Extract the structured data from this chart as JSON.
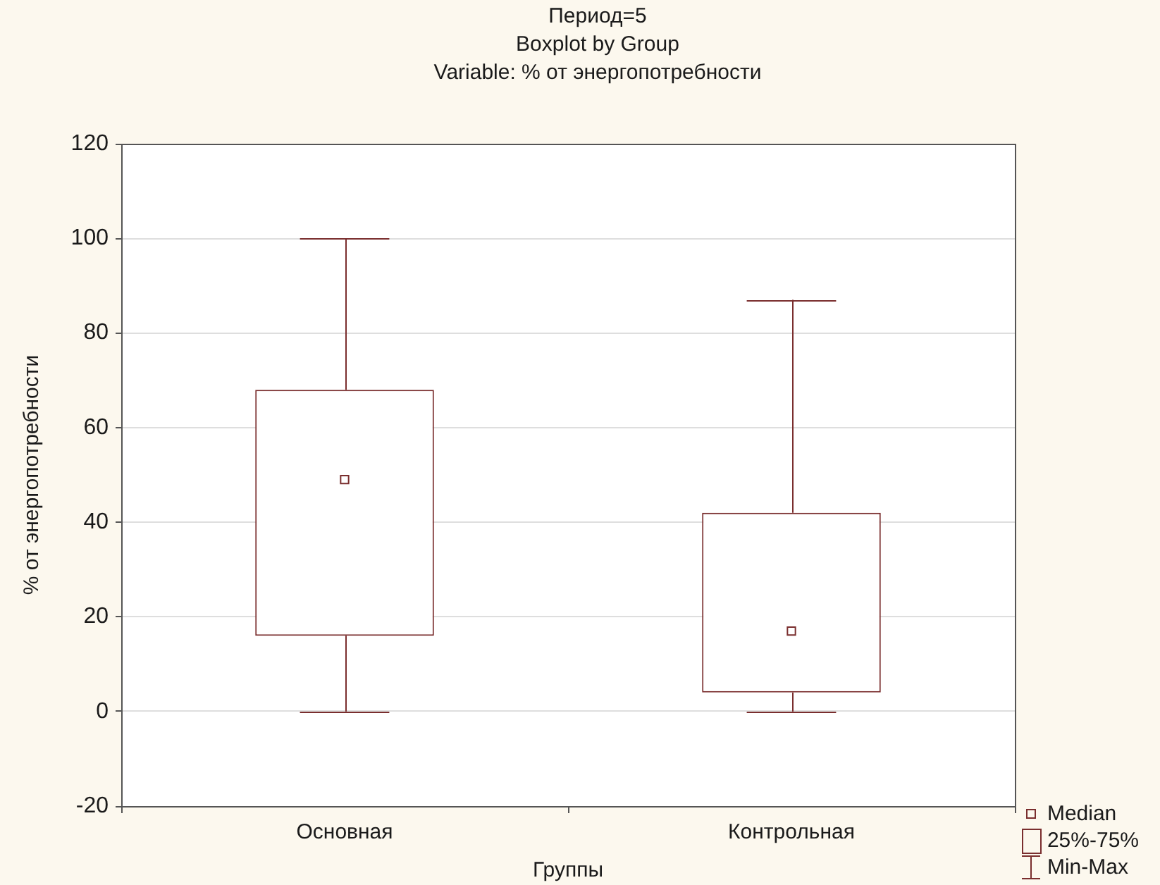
{
  "chart_data": {
    "type": "box",
    "title": "Период=5",
    "subtitle": "Boxplot by Group\nVariable: % от энергопотребности",
    "xlabel": "Группы",
    "ylabel": "% от энергопотребности",
    "categories": [
      "Основная",
      "Контрольная"
    ],
    "boxes": [
      {
        "low": 0,
        "q1": 16,
        "median": 49,
        "q3": 68,
        "high": 100
      },
      {
        "low": 0,
        "q1": 4,
        "median": 17,
        "q3": 42,
        "high": 87
      }
    ],
    "color": "#7a2e2e",
    "ylim": [
      -20,
      120
    ],
    "yticks": [
      -20,
      0,
      20,
      40,
      60,
      80,
      100,
      120
    ],
    "grid": "y",
    "annotations": [
      "Median",
      "25%-75%",
      "Min-Max"
    ]
  }
}
